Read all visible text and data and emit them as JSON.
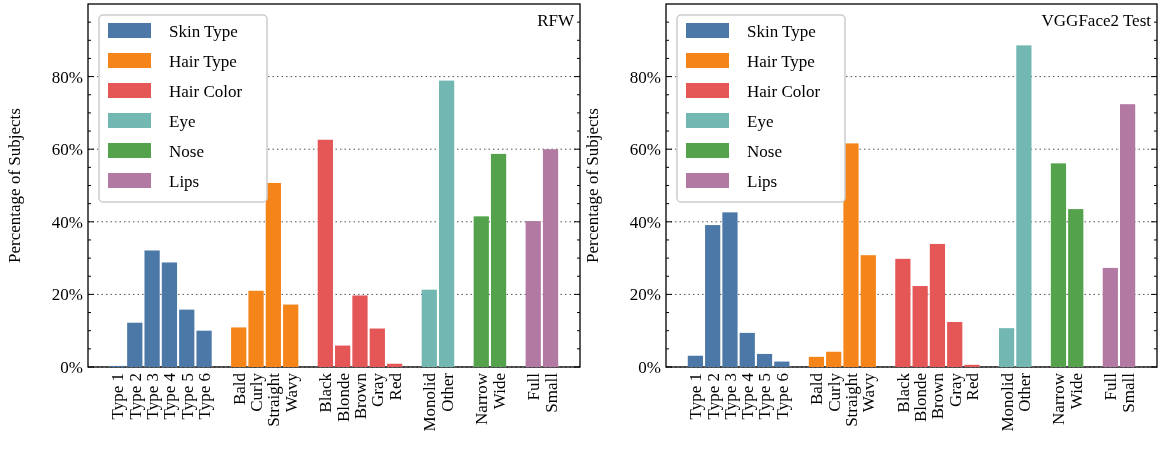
{
  "chart_data": [
    {
      "type": "bar",
      "title": "RFW",
      "ylabel": "Percentage of Subjects",
      "categories": [
        "Type 1",
        "Type 2",
        "Type 3",
        "Type 4",
        "Type 5",
        "Type 6",
        null,
        "Bald",
        "Curly",
        "Straight",
        "Wavy",
        null,
        "Black",
        "Blonde",
        "Brown",
        "Gray",
        "Red",
        null,
        "Monolid",
        "Other",
        null,
        "Narrow",
        "Wide",
        null,
        "Full",
        "Small"
      ],
      "series": [
        {
          "name": "Skin Type",
          "color": "#4c78a8",
          "values": [
            0.3,
            12.2,
            32.1,
            28.8,
            15.8,
            10.0,
            null,
            null,
            null,
            null,
            null,
            null,
            null,
            null,
            null,
            null,
            null,
            null,
            null,
            null,
            null,
            null,
            null,
            null,
            null,
            null
          ]
        },
        {
          "name": "Hair Type",
          "color": "#f58518",
          "values": [
            null,
            null,
            null,
            null,
            null,
            null,
            null,
            10.9,
            21.0,
            50.7,
            17.2,
            null,
            null,
            null,
            null,
            null,
            null,
            null,
            null,
            null,
            null,
            null,
            null,
            null,
            null,
            null
          ]
        },
        {
          "name": "Hair Color",
          "color": "#e45756",
          "values": [
            null,
            null,
            null,
            null,
            null,
            null,
            null,
            null,
            null,
            null,
            null,
            null,
            62.6,
            5.9,
            19.7,
            10.6,
            0.9,
            null,
            null,
            null,
            null,
            null,
            null,
            null,
            null,
            null
          ]
        },
        {
          "name": "Eye",
          "color": "#72b7b2",
          "values": [
            null,
            null,
            null,
            null,
            null,
            null,
            null,
            null,
            null,
            null,
            null,
            null,
            null,
            null,
            null,
            null,
            null,
            null,
            21.3,
            78.9,
            null,
            null,
            null,
            null,
            null,
            null
          ]
        },
        {
          "name": "Nose",
          "color": "#54a24b",
          "values": [
            null,
            null,
            null,
            null,
            null,
            null,
            null,
            null,
            null,
            null,
            null,
            null,
            null,
            null,
            null,
            null,
            null,
            null,
            null,
            null,
            null,
            41.5,
            58.7,
            null,
            null,
            null
          ]
        },
        {
          "name": "Lips",
          "color": "#b279a2",
          "values": [
            null,
            null,
            null,
            null,
            null,
            null,
            null,
            null,
            null,
            null,
            null,
            null,
            null,
            null,
            null,
            null,
            null,
            null,
            null,
            null,
            null,
            null,
            null,
            null,
            40.2,
            60.0
          ]
        }
      ],
      "ylim": [
        0,
        100
      ],
      "yticks": [
        {
          "value": 0,
          "label": "0%"
        },
        {
          "value": 5,
          "label": null
        },
        {
          "value": 10,
          "label": null
        },
        {
          "value": 15,
          "label": null
        },
        {
          "value": 20,
          "label": "20%"
        },
        {
          "value": 25,
          "label": null
        },
        {
          "value": 30,
          "label": null
        },
        {
          "value": 35,
          "label": null
        },
        {
          "value": 40,
          "label": "40%"
        },
        {
          "value": 45,
          "label": null
        },
        {
          "value": 50,
          "label": null
        },
        {
          "value": 55,
          "label": null
        },
        {
          "value": 60,
          "label": "60%"
        },
        {
          "value": 65,
          "label": null
        },
        {
          "value": 70,
          "label": null
        },
        {
          "value": 75,
          "label": null
        },
        {
          "value": 80,
          "label": "80%"
        },
        {
          "value": 85,
          "label": null
        },
        {
          "value": 90,
          "label": null
        },
        {
          "value": 95,
          "label": null
        }
      ],
      "grid": "y",
      "legend": "top left"
    },
    {
      "type": "bar",
      "title": "VGGFace2 Test",
      "ylabel": "Percentage of Subjects",
      "categories": [
        "Type 1",
        "Type 2",
        "Type 3",
        "Type 4",
        "Type 5",
        "Type 6",
        null,
        "Bald",
        "Curly",
        "Straight",
        "Wavy",
        null,
        "Black",
        "Blonde",
        "Brown",
        "Gray",
        "Red",
        null,
        "Monolid",
        "Other",
        null,
        "Narrow",
        "Wide",
        null,
        "Full",
        "Small"
      ],
      "series": [
        {
          "name": "Skin Type",
          "color": "#4c78a8",
          "values": [
            3.1,
            39.1,
            42.6,
            9.4,
            3.6,
            1.5,
            null,
            null,
            null,
            null,
            null,
            null,
            null,
            null,
            null,
            null,
            null,
            null,
            null,
            null,
            null,
            null,
            null,
            null,
            null,
            null
          ]
        },
        {
          "name": "Hair Type",
          "color": "#f58518",
          "values": [
            null,
            null,
            null,
            null,
            null,
            null,
            null,
            2.8,
            4.2,
            61.6,
            30.8,
            null,
            null,
            null,
            null,
            null,
            null,
            null,
            null,
            null,
            null,
            null,
            null,
            null,
            null,
            null
          ]
        },
        {
          "name": "Hair Color",
          "color": "#e45756",
          "values": [
            null,
            null,
            null,
            null,
            null,
            null,
            null,
            null,
            null,
            null,
            null,
            null,
            29.8,
            22.3,
            33.9,
            12.4,
            0.6,
            null,
            null,
            null,
            null,
            null,
            null,
            null,
            null,
            null
          ]
        },
        {
          "name": "Eye",
          "color": "#72b7b2",
          "values": [
            null,
            null,
            null,
            null,
            null,
            null,
            null,
            null,
            null,
            null,
            null,
            null,
            null,
            null,
            null,
            null,
            null,
            null,
            10.7,
            88.6,
            null,
            null,
            null,
            null,
            null,
            null
          ]
        },
        {
          "name": "Nose",
          "color": "#54a24b",
          "values": [
            null,
            null,
            null,
            null,
            null,
            null,
            null,
            null,
            null,
            null,
            null,
            null,
            null,
            null,
            null,
            null,
            null,
            null,
            null,
            null,
            null,
            56.1,
            43.5,
            null,
            null,
            null
          ]
        },
        {
          "name": "Lips",
          "color": "#b279a2",
          "values": [
            null,
            null,
            null,
            null,
            null,
            null,
            null,
            null,
            null,
            null,
            null,
            null,
            null,
            null,
            null,
            null,
            null,
            null,
            null,
            null,
            null,
            null,
            null,
            null,
            27.3,
            72.4
          ]
        }
      ],
      "ylim": [
        0,
        100
      ],
      "yticks": [
        {
          "value": 0,
          "label": "0%"
        },
        {
          "value": 5,
          "label": null
        },
        {
          "value": 10,
          "label": null
        },
        {
          "value": 15,
          "label": null
        },
        {
          "value": 20,
          "label": "20%"
        },
        {
          "value": 25,
          "label": null
        },
        {
          "value": 30,
          "label": null
        },
        {
          "value": 35,
          "label": null
        },
        {
          "value": 40,
          "label": "40%"
        },
        {
          "value": 45,
          "label": null
        },
        {
          "value": 50,
          "label": null
        },
        {
          "value": 55,
          "label": null
        },
        {
          "value": 60,
          "label": "60%"
        },
        {
          "value": 65,
          "label": null
        },
        {
          "value": 70,
          "label": null
        },
        {
          "value": 75,
          "label": null
        },
        {
          "value": 80,
          "label": "80%"
        },
        {
          "value": 85,
          "label": null
        },
        {
          "value": 90,
          "label": null
        },
        {
          "value": 95,
          "label": null
        }
      ],
      "grid": "y",
      "legend": "top left"
    }
  ]
}
